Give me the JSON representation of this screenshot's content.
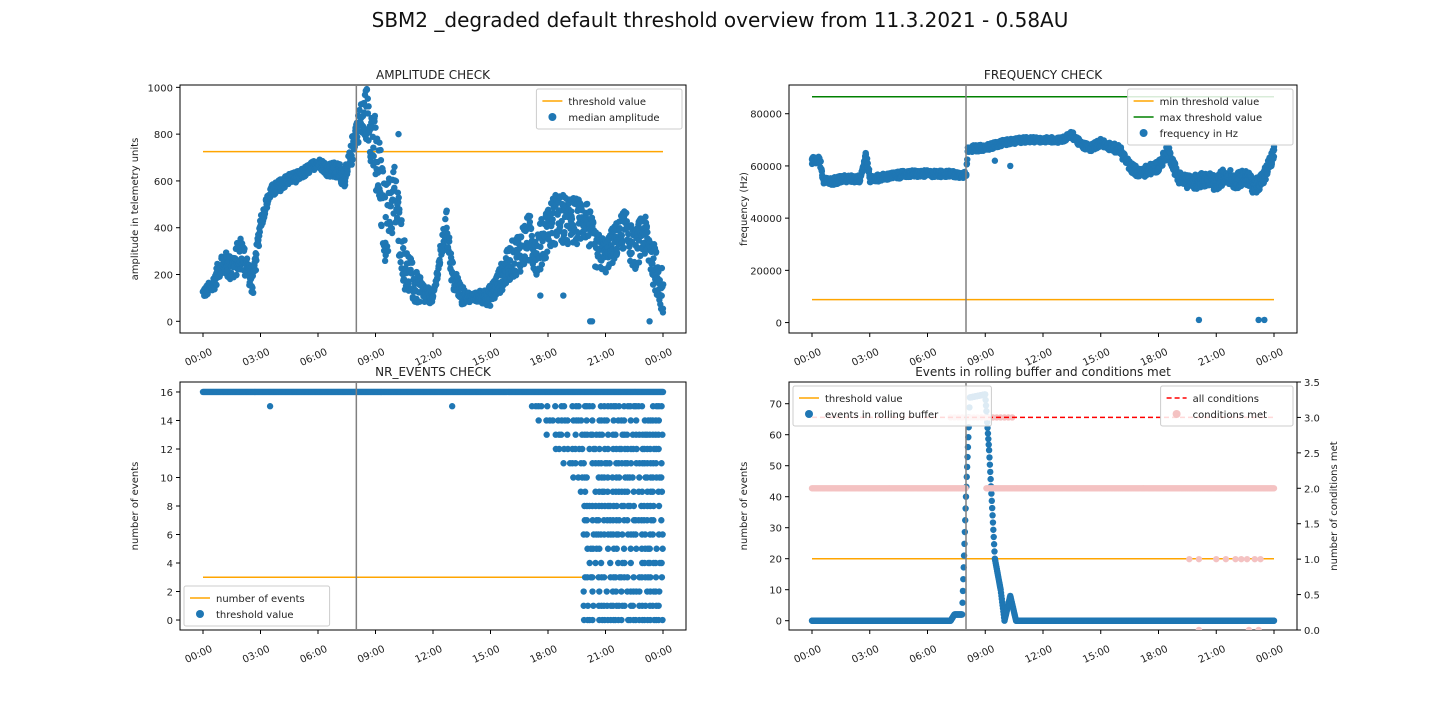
{
  "figure": {
    "title": "SBM2 _degraded default threshold overview from 11.3.2021 - 0.58AU"
  },
  "colors": {
    "points": "#1f77b4",
    "threshold": "#ffa500",
    "max_threshold": "#008000",
    "all_conditions": "#ff0000",
    "conditions_met": "#f4c2c2",
    "vline": "#808080"
  },
  "time_ticks": [
    "00:00",
    "03:00",
    "06:00",
    "09:00",
    "12:00",
    "15:00",
    "18:00",
    "21:00",
    "00:00"
  ],
  "chart_data": [
    {
      "id": "amplitude",
      "type": "scatter",
      "title": "AMPLITUDE CHECK",
      "xlabel": "",
      "ylabel": "amplitude in telemetry units",
      "xlim": [
        0,
        24
      ],
      "ylim": [
        -50,
        1010
      ],
      "yticks": [
        0,
        200,
        400,
        600,
        800,
        1000
      ],
      "vline_x": 8.0,
      "legend_position": "upper-right",
      "threshold_lines": [
        {
          "name": "threshold value",
          "y": 725,
          "color": "#ffa500"
        }
      ],
      "series": [
        {
          "name": "median amplitude",
          "color": "#1f77b4",
          "profile": [
            [
              0,
              120
            ],
            [
              0.5,
              150
            ],
            [
              1,
              260
            ],
            [
              1.5,
              220
            ],
            [
              2,
              300
            ],
            [
              2.6,
              160
            ],
            [
              3,
              420
            ],
            [
              3.5,
              550
            ],
            [
              4,
              580
            ],
            [
              4.5,
              610
            ],
            [
              5,
              620
            ],
            [
              5.5,
              650
            ],
            [
              6,
              680
            ],
            [
              6.5,
              650
            ],
            [
              7,
              640
            ],
            [
              7.5,
              620
            ],
            [
              8,
              820
            ],
            [
              8.6,
              900
            ],
            [
              9,
              700
            ],
            [
              9.5,
              420
            ],
            [
              10,
              540
            ],
            [
              10.5,
              250
            ],
            [
              11,
              150
            ],
            [
              11.5,
              120
            ],
            [
              12,
              100
            ],
            [
              12.7,
              420
            ],
            [
              13,
              200
            ],
            [
              13.5,
              110
            ],
            [
              14,
              100
            ],
            [
              15,
              110
            ],
            [
              16,
              250
            ],
            [
              17,
              350
            ],
            [
              17.5,
              300
            ],
            [
              18,
              400
            ],
            [
              18.5,
              450
            ],
            [
              19,
              420
            ],
            [
              20,
              440
            ],
            [
              20.5,
              300
            ],
            [
              21,
              280
            ],
            [
              22,
              400
            ],
            [
              22.5,
              300
            ],
            [
              23,
              380
            ],
            [
              23.5,
              250
            ],
            [
              24,
              120
            ]
          ],
          "spread": [
            [
              0,
              40
            ],
            [
              2,
              150
            ],
            [
              3,
              60
            ],
            [
              6,
              40
            ],
            [
              8,
              120
            ],
            [
              9.2,
              380
            ],
            [
              10.5,
              220
            ],
            [
              12,
              40
            ],
            [
              13,
              140
            ],
            [
              14,
              30
            ],
            [
              15.5,
              120
            ],
            [
              17,
              220
            ],
            [
              19,
              220
            ],
            [
              21,
              150
            ],
            [
              24,
              200
            ]
          ],
          "outliers": [
            [
              20.2,
              0
            ],
            [
              20.3,
              0
            ],
            [
              23.3,
              0
            ],
            [
              7.2,
              600
            ],
            [
              10.2,
              800
            ],
            [
              17.6,
              110
            ],
            [
              18.8,
              110
            ]
          ]
        }
      ]
    },
    {
      "id": "frequency",
      "type": "scatter",
      "title": "FREQUENCY CHECK",
      "xlabel": "",
      "ylabel": "frequency (Hz)",
      "xlim": [
        0,
        24
      ],
      "ylim": [
        -4000,
        91000
      ],
      "yticks": [
        0,
        20000,
        40000,
        60000,
        80000
      ],
      "vline_x": 8.0,
      "legend_position": "upper-right",
      "threshold_lines": [
        {
          "name": "min threshold value",
          "y": 8800,
          "color": "#ffa500"
        },
        {
          "name": "max threshold value",
          "y": 86500,
          "color": "#008000"
        }
      ],
      "series": [
        {
          "name": "frequency in Hz",
          "color": "#1f77b4",
          "profile": [
            [
              0,
              62000
            ],
            [
              0.4,
              62500
            ],
            [
              0.6,
              54000
            ],
            [
              1,
              54000
            ],
            [
              1.5,
              55000
            ],
            [
              2.5,
              55000
            ],
            [
              2.8,
              64500
            ],
            [
              3,
              55000
            ],
            [
              4,
              56000
            ],
            [
              5,
              57000
            ],
            [
              6,
              57000
            ],
            [
              7,
              57000
            ],
            [
              8,
              56500
            ],
            [
              8.1,
              66500
            ],
            [
              9,
              67000
            ],
            [
              9.5,
              68000
            ],
            [
              10,
              69000
            ],
            [
              11,
              70000
            ],
            [
              12,
              70000
            ],
            [
              13,
              70000
            ],
            [
              13.5,
              72000
            ],
            [
              14,
              68000
            ],
            [
              14.5,
              67000
            ],
            [
              15,
              69000
            ],
            [
              16,
              66000
            ],
            [
              16.5,
              60000
            ],
            [
              17,
              57000
            ],
            [
              18,
              60000
            ],
            [
              18.5,
              66000
            ],
            [
              19,
              56000
            ],
            [
              19.5,
              54000
            ],
            [
              20,
              54000
            ],
            [
              20.5,
              55000
            ],
            [
              21,
              53000
            ],
            [
              21.5,
              57000
            ],
            [
              22,
              54000
            ],
            [
              22.5,
              56000
            ],
            [
              23,
              52000
            ],
            [
              23.5,
              56000
            ],
            [
              24,
              65000
            ]
          ],
          "spread": [
            [
              0,
              3000
            ],
            [
              8,
              2500
            ],
            [
              12,
              2000
            ],
            [
              15,
              3000
            ],
            [
              18,
              4500
            ],
            [
              21,
              6000
            ],
            [
              24,
              6000
            ]
          ],
          "outliers": [
            [
              20.1,
              1000
            ],
            [
              23.2,
              1000
            ],
            [
              23.5,
              1000
            ],
            [
              9.5,
              62000
            ],
            [
              10.3,
              60000
            ]
          ]
        }
      ]
    },
    {
      "id": "nr_events",
      "type": "scatter",
      "title": "NR_EVENTS CHECK",
      "xlabel": "",
      "ylabel": "number of events",
      "xlim": [
        0,
        24
      ],
      "ylim": [
        -0.7,
        16.7
      ],
      "yticks": [
        0,
        2,
        4,
        6,
        8,
        10,
        12,
        14,
        16
      ],
      "vline_x": 8.0,
      "legend_position": "lower-left",
      "threshold_lines": [
        {
          "name": "number of events",
          "y": 3,
          "color": "#ffa500"
        }
      ],
      "series": [
        {
          "name": "threshold value",
          "color": "#1f77b4",
          "baseline": 16,
          "scatter_zone": [
            17.2,
            24
          ],
          "outliers": [
            [
              3.5,
              15
            ],
            [
              13,
              15
            ]
          ]
        }
      ]
    },
    {
      "id": "rolling_buffer",
      "type": "scatter",
      "title": "Events in rolling buffer and conditions met",
      "xlabel": "",
      "ylabel": "number of events",
      "ylabel_right": "number of conditions met",
      "xlim": [
        0,
        24
      ],
      "ylim": [
        -3,
        77
      ],
      "yticks": [
        0,
        10,
        20,
        30,
        40,
        50,
        60,
        70
      ],
      "ylim_right": [
        0,
        3.5
      ],
      "yticks_right": [
        0.0,
        0.5,
        1.0,
        1.5,
        2.0,
        2.5,
        3.0,
        3.5
      ],
      "vline_x": 8.0,
      "legend_position": "upper-left",
      "legend_right_position": "upper-right",
      "threshold_lines": [
        {
          "name": "threshold value",
          "y": 20,
          "color": "#ffa500"
        }
      ],
      "series": [
        {
          "name": "events in rolling buffer",
          "color": "#1f77b4",
          "profile": [
            [
              0,
              0
            ],
            [
              7.2,
              0
            ],
            [
              7.4,
              2
            ],
            [
              7.8,
              2
            ],
            [
              8.0,
              40
            ],
            [
              8.2,
              72
            ],
            [
              9.0,
              73
            ],
            [
              9.2,
              55
            ],
            [
              9.5,
              20
            ],
            [
              9.8,
              10
            ],
            [
              10.0,
              0
            ],
            [
              10.3,
              8
            ],
            [
              10.6,
              0
            ],
            [
              24,
              0
            ]
          ]
        },
        {
          "name": "conditions met",
          "axis": "right",
          "color": "#f4c2c2",
          "baseline": 2,
          "threes": [
            7.2,
            10.5
          ],
          "gap": [
            8.0,
            9.0
          ],
          "ones": [
            19.6,
            20.1,
            21.0,
            21.5,
            22.0,
            22.3,
            22.6,
            23.0,
            23.3
          ],
          "zeros": [
            20.1,
            22.7,
            23.2
          ]
        },
        {
          "name": "all conditions",
          "axis": "right",
          "color": "#ff0000",
          "dashed": true,
          "y": 3
        }
      ]
    }
  ]
}
